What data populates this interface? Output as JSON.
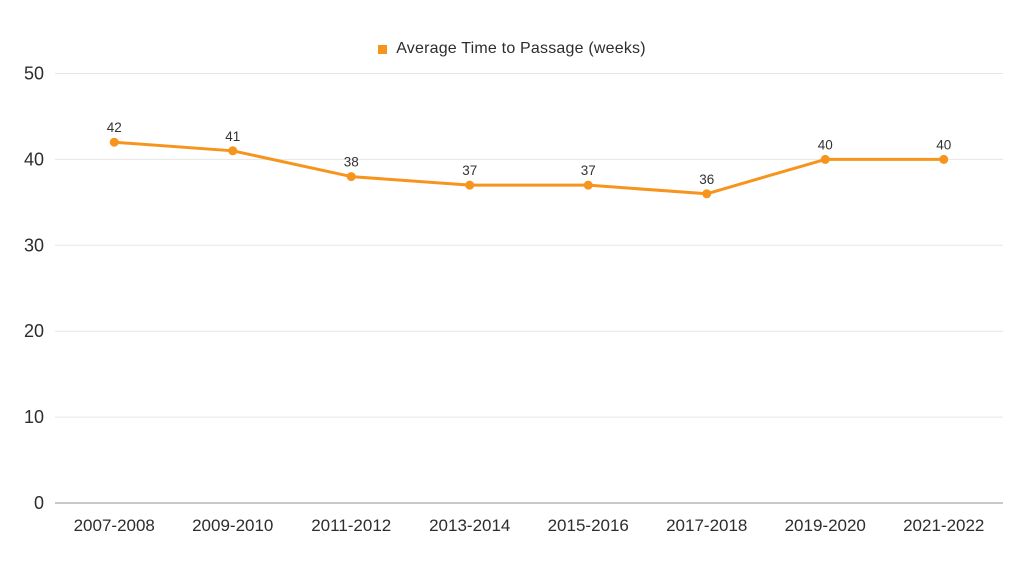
{
  "page": {
    "background": "#ffffff"
  },
  "legend": {
    "label": "Average Time to Passage (weeks)",
    "marker_color": "#f7941d"
  },
  "chart_data": {
    "type": "line",
    "title": "",
    "categories": [
      "2007-2008",
      "2009-2010",
      "2011-2012",
      "2013-2014",
      "2015-2016",
      "2017-2018",
      "2019-2020",
      "2021-2022"
    ],
    "series": [
      {
        "name": "Average Time to Passage (weeks)",
        "values": [
          42,
          41,
          38,
          37,
          37,
          36,
          40,
          40
        ],
        "color": "#f7941d"
      }
    ],
    "data_labels": [
      42,
      41,
      38,
      37,
      37,
      36,
      40,
      40
    ],
    "xlabel": "",
    "ylabel": "",
    "ylim": [
      0,
      50
    ],
    "yticks": [
      0,
      10,
      20,
      30,
      40,
      50
    ],
    "grid": "horizontal",
    "legend_position": "top-center",
    "marker": "circle"
  },
  "colors": {
    "line": "#f7941d",
    "marker": "#f7941d",
    "gridline": "#e6e6e6",
    "axis_line": "#c9c9c9",
    "tick_text": "#2d2d2d",
    "value_label_text": "#333333"
  }
}
